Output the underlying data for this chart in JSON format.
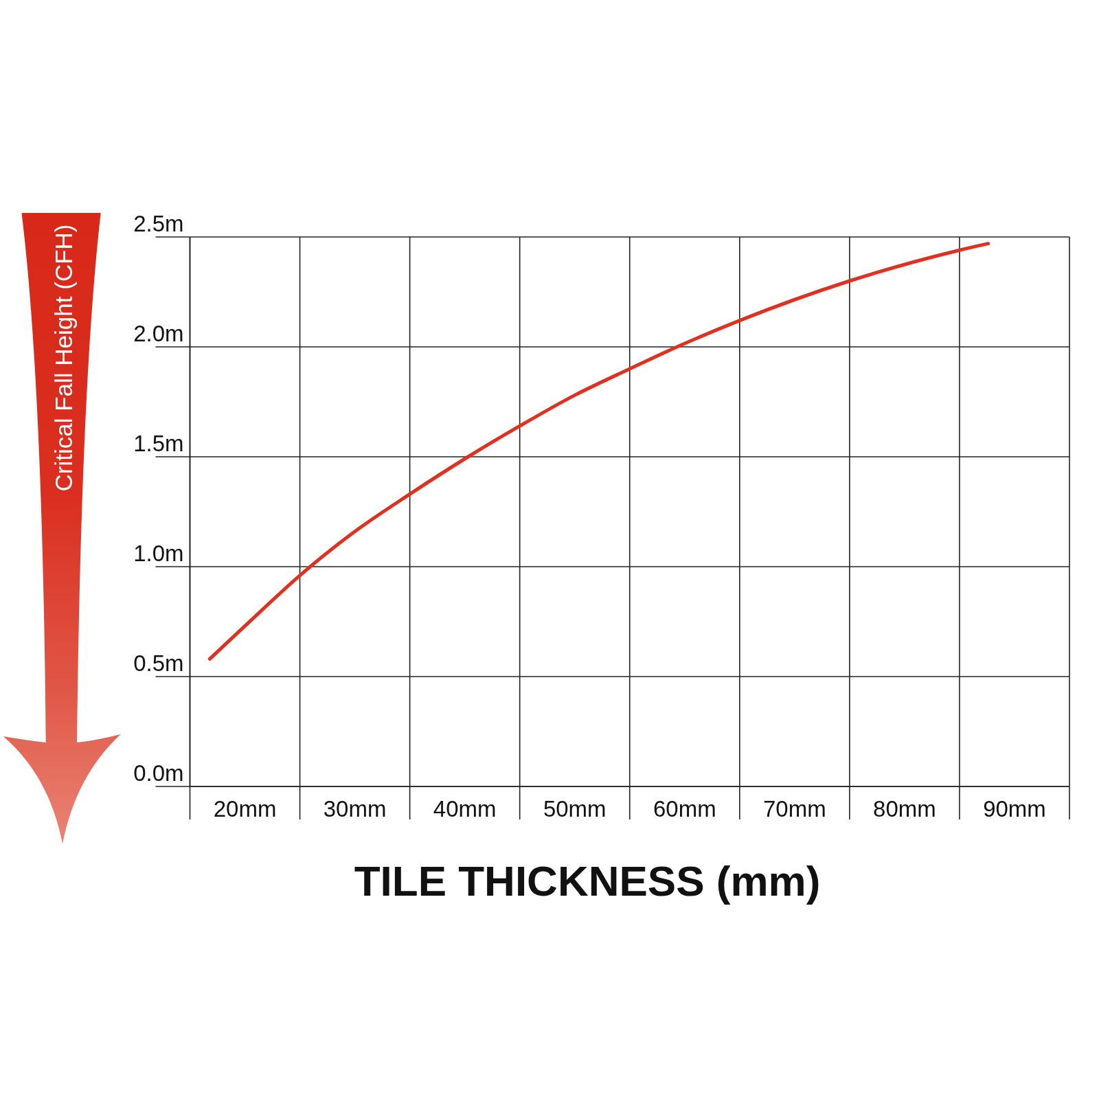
{
  "chart_data": {
    "type": "line",
    "xlabel": "TILE THICKNESS (mm)",
    "ylabel": "Critical Fall Height (CFH)",
    "x": [
      16.8,
      20,
      25,
      30,
      35,
      40.3,
      45,
      50,
      55,
      59.3,
      65,
      75,
      85,
      87.6
    ],
    "series": [
      {
        "color": "#e03020",
        "values": [
          0.58,
          0.73,
          0.96,
          1.16,
          1.33,
          1.5,
          1.64,
          1.78,
          1.9,
          2.0,
          2.12,
          2.3,
          2.44,
          2.47
        ]
      }
    ],
    "xlim": [
      15,
      95
    ],
    "xticks": [
      {
        "value": 15,
        "label": null
      },
      {
        "value": 20,
        "label": "20mm"
      },
      {
        "value": 25,
        "label": null
      },
      {
        "value": 30,
        "label": "30mm"
      },
      {
        "value": 35,
        "label": null
      },
      {
        "value": 40,
        "label": "40mm"
      },
      {
        "value": 45,
        "label": null
      },
      {
        "value": 50,
        "label": "50mm"
      },
      {
        "value": 55,
        "label": null
      },
      {
        "value": 60,
        "label": "60mm"
      },
      {
        "value": 65,
        "label": null
      },
      {
        "value": 70,
        "label": "70mm"
      },
      {
        "value": 75,
        "label": null
      },
      {
        "value": 80,
        "label": "80mm"
      },
      {
        "value": 85,
        "label": null
      },
      {
        "value": 90,
        "label": "90mm"
      },
      {
        "value": 95,
        "label": null
      }
    ],
    "ylim": [
      0,
      2.5
    ],
    "yticks": [
      {
        "value": 0,
        "label": "0.0m"
      },
      {
        "value": 0.5,
        "label": "0.5m"
      },
      {
        "value": 1,
        "label": "1.0m"
      },
      {
        "value": 1.5,
        "label": "1.5m"
      },
      {
        "value": 2,
        "label": "2.0m"
      },
      {
        "value": 2.5,
        "label": "2.5m"
      }
    ],
    "grid": true,
    "marker": "none",
    "line_style": "solid"
  }
}
